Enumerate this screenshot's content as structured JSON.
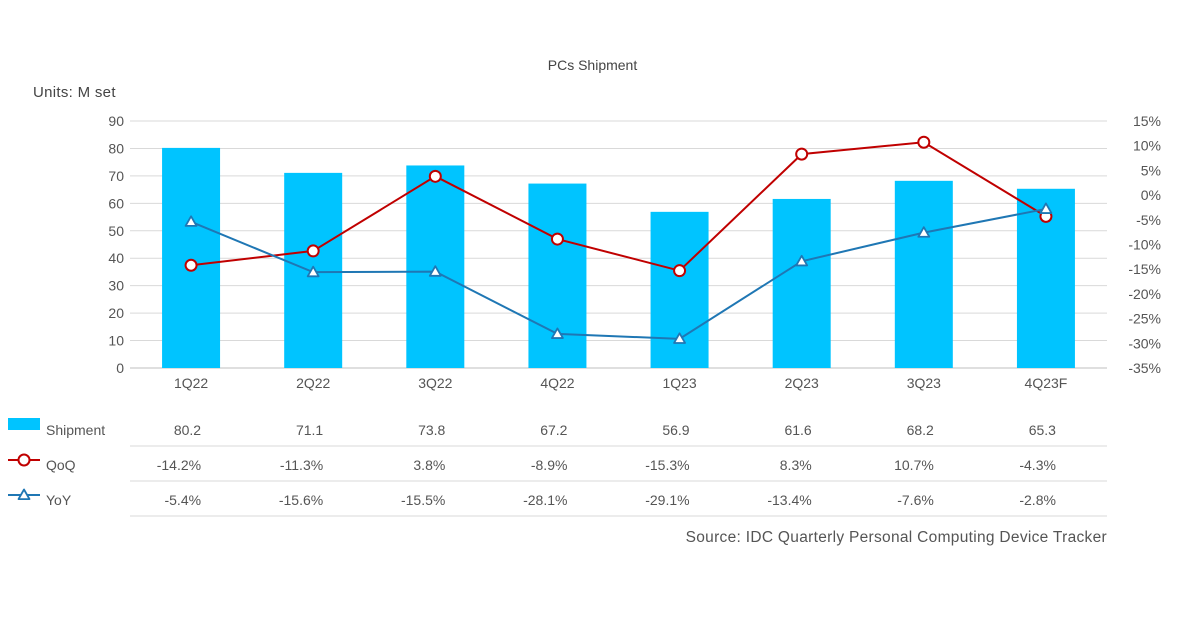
{
  "chart_data": {
    "type": "bar+line",
    "title": "PCs Shipment",
    "unit_label": "Units: M set",
    "categories": [
      "1Q22",
      "2Q22",
      "3Q22",
      "4Q22",
      "1Q23",
      "2Q23",
      "3Q23",
      "4Q23F"
    ],
    "left_axis": {
      "ylim": [
        0,
        90
      ],
      "ticks": [
        "0",
        "10",
        "20",
        "30",
        "40",
        "50",
        "60",
        "70",
        "80",
        "90"
      ]
    },
    "right_axis": {
      "ylim": [
        -35,
        15
      ],
      "ticks": [
        "-35%",
        "-30%",
        "-25%",
        "-20%",
        "-15%",
        "-10%",
        "-5%",
        "0%",
        "5%",
        "10%",
        "15%"
      ]
    },
    "series": [
      {
        "name": "Shipment",
        "kind": "bar",
        "axis": "left",
        "color": "#00c4ff",
        "values": [
          80.2,
          71.1,
          73.8,
          67.2,
          56.9,
          61.6,
          68.2,
          65.3
        ],
        "labels": [
          "80.2",
          "71.1",
          "73.8",
          "67.2",
          "56.9",
          "61.6",
          "68.2",
          "65.3"
        ]
      },
      {
        "name": "QoQ",
        "kind": "line",
        "marker": "circle",
        "axis": "right",
        "color": "#c00000",
        "values": [
          -14.2,
          -11.3,
          3.8,
          -8.9,
          -15.3,
          8.3,
          10.7,
          -4.3
        ],
        "labels": [
          "-14.2%",
          "-11.3%",
          "3.8%",
          "-8.9%",
          "-15.3%",
          "8.3%",
          "10.7%",
          "-4.3%"
        ]
      },
      {
        "name": "YoY",
        "kind": "line",
        "marker": "triangle",
        "axis": "right",
        "color": "#1f77b4",
        "values": [
          -5.4,
          -15.6,
          -15.5,
          -28.1,
          -29.1,
          -13.4,
          -7.6,
          -2.8
        ],
        "labels": [
          "-5.4%",
          "-15.6%",
          "-15.5%",
          "-28.1%",
          "-29.1%",
          "-13.4%",
          "-7.6%",
          "-2.8%"
        ]
      }
    ],
    "grid": true,
    "data_table": true,
    "source": "Source: IDC Quarterly Personal Computing Device Tracker"
  }
}
